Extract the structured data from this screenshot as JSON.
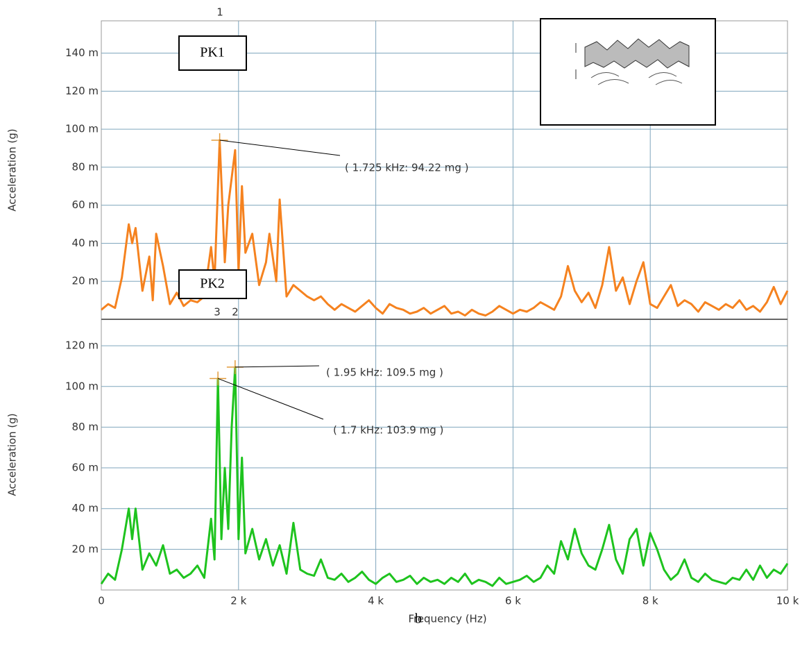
{
  "chart_data": [
    {
      "type": "line",
      "ylabel": "Acceleration (g)",
      "color": "#f5821f",
      "grid": true,
      "xlim": [
        0,
        10000
      ],
      "xticks": [
        0,
        2000,
        4000,
        6000,
        8000,
        10000
      ],
      "ylim": [
        0,
        157
      ],
      "yticks": [
        {
          "value": 20,
          "label": "20 m"
        },
        {
          "value": 40,
          "label": "40 m"
        },
        {
          "value": 60,
          "label": "60 m"
        },
        {
          "value": 80,
          "label": "80 m"
        },
        {
          "value": 100,
          "label": "100 m"
        },
        {
          "value": 120,
          "label": "120 m"
        },
        {
          "value": 140,
          "label": "140 m"
        }
      ],
      "x": [
        0,
        100,
        200,
        300,
        400,
        450,
        500,
        600,
        700,
        750,
        800,
        900,
        1000,
        1100,
        1200,
        1300,
        1400,
        1500,
        1600,
        1650,
        1725,
        1800,
        1850,
        1950,
        2000,
        2050,
        2100,
        2200,
        2300,
        2400,
        2450,
        2550,
        2600,
        2700,
        2800,
        2900,
        3000,
        3100,
        3200,
        3300,
        3400,
        3500,
        3600,
        3700,
        3800,
        3900,
        4000,
        4100,
        4200,
        4300,
        4400,
        4500,
        4600,
        4700,
        4800,
        4900,
        5000,
        5100,
        5200,
        5300,
        5400,
        5500,
        5600,
        5700,
        5800,
        5900,
        6000,
        6100,
        6200,
        6300,
        6400,
        6500,
        6600,
        6700,
        6800,
        6900,
        7000,
        7100,
        7200,
        7300,
        7400,
        7500,
        7600,
        7700,
        7800,
        7900,
        8000,
        8100,
        8200,
        8300,
        8400,
        8500,
        8600,
        8700,
        8800,
        8900,
        9000,
        9100,
        9200,
        9300,
        9400,
        9500,
        9600,
        9700,
        9800,
        9900,
        10000
      ],
      "values": [
        5,
        8,
        6,
        22,
        50,
        40,
        48,
        15,
        33,
        10,
        45,
        28,
        8,
        14,
        7,
        10,
        9,
        12,
        38,
        20,
        94.22,
        30,
        60,
        89,
        25,
        70,
        35,
        45,
        18,
        30,
        45,
        20,
        63,
        12,
        18,
        15,
        12,
        10,
        12,
        8,
        5,
        8,
        6,
        4,
        7,
        10,
        6,
        3,
        8,
        6,
        5,
        3,
        4,
        6,
        3,
        5,
        7,
        3,
        4,
        2,
        5,
        3,
        2,
        4,
        7,
        5,
        3,
        5,
        4,
        6,
        9,
        7,
        5,
        12,
        28,
        15,
        9,
        14,
        6,
        18,
        38,
        15,
        22,
        8,
        20,
        30,
        8,
        6,
        12,
        18,
        7,
        10,
        8,
        4,
        9,
        7,
        5,
        8,
        6,
        10,
        5,
        7,
        4,
        9,
        17,
        8,
        15
      ],
      "annotations": [
        {
          "text": "( 1.725 kHz:  94.22 mg )",
          "x": 1725,
          "y": 94.22
        }
      ]
    },
    {
      "type": "line",
      "ylabel": "Acceleration (g)",
      "xlabel": "Frequency (Hz)",
      "color": "#1ec31e",
      "grid": true,
      "xlim": [
        0,
        10000
      ],
      "xticks": [
        0,
        {
          "value": 2000,
          "label": "2 k"
        },
        {
          "value": 4000,
          "label": "4 k"
        },
        {
          "value": 6000,
          "label": "6 k"
        },
        {
          "value": 8000,
          "label": "8 k"
        },
        {
          "value": 10000,
          "label": "10 k"
        }
      ],
      "ylim": [
        0,
        133
      ],
      "yticks": [
        {
          "value": 20,
          "label": "20 m"
        },
        {
          "value": 40,
          "label": "40 m"
        },
        {
          "value": 60,
          "label": "60 m"
        },
        {
          "value": 80,
          "label": "80 m"
        },
        {
          "value": 100,
          "label": "100 m"
        },
        {
          "value": 120,
          "label": "120 m"
        }
      ],
      "x": [
        0,
        100,
        200,
        300,
        400,
        450,
        500,
        600,
        700,
        800,
        900,
        1000,
        1100,
        1200,
        1300,
        1400,
        1500,
        1600,
        1650,
        1700,
        1750,
        1800,
        1850,
        1900,
        1950,
        2000,
        2050,
        2100,
        2200,
        2300,
        2400,
        2500,
        2600,
        2700,
        2800,
        2900,
        3000,
        3100,
        3200,
        3300,
        3400,
        3500,
        3600,
        3700,
        3800,
        3900,
        4000,
        4100,
        4200,
        4300,
        4400,
        4500,
        4600,
        4700,
        4800,
        4900,
        5000,
        5100,
        5200,
        5300,
        5400,
        5500,
        5600,
        5700,
        5800,
        5900,
        6000,
        6100,
        6200,
        6300,
        6400,
        6500,
        6600,
        6700,
        6800,
        6900,
        7000,
        7100,
        7200,
        7300,
        7400,
        7500,
        7600,
        7700,
        7800,
        7900,
        8000,
        8100,
        8200,
        8300,
        8400,
        8500,
        8600,
        8700,
        8800,
        8900,
        9000,
        9100,
        9200,
        9300,
        9400,
        9500,
        9600,
        9700,
        9800,
        9900,
        10000
      ],
      "values": [
        3,
        8,
        5,
        20,
        40,
        25,
        40,
        10,
        18,
        12,
        22,
        8,
        10,
        6,
        8,
        12,
        6,
        35,
        15,
        103.9,
        25,
        60,
        30,
        80,
        109.5,
        25,
        65,
        18,
        30,
        15,
        25,
        12,
        22,
        8,
        33,
        10,
        8,
        7,
        15,
        6,
        5,
        8,
        4,
        6,
        9,
        5,
        3,
        6,
        8,
        4,
        5,
        7,
        3,
        6,
        4,
        5,
        3,
        6,
        4,
        8,
        3,
        5,
        4,
        2,
        6,
        3,
        4,
        5,
        7,
        4,
        6,
        12,
        8,
        24,
        15,
        30,
        18,
        12,
        10,
        20,
        32,
        15,
        8,
        25,
        30,
        12,
        28,
        20,
        10,
        5,
        8,
        15,
        6,
        4,
        8,
        5,
        4,
        3,
        6,
        5,
        10,
        5,
        12,
        6,
        10,
        8,
        13
      ],
      "annotations": [
        {
          "text": "( 1.95 kHz:  109.5 mg )",
          "x": 1950,
          "y": 109.5
        },
        {
          "text": "( 1.7 kHz:  103.9 mg )",
          "x": 1700,
          "y": 103.9
        }
      ]
    }
  ],
  "labels": {
    "cursor_top": "1",
    "cursor_a": "3",
    "cursor_b": "2",
    "pk1": "PK1",
    "pk2": "PK2",
    "caption": "b"
  }
}
